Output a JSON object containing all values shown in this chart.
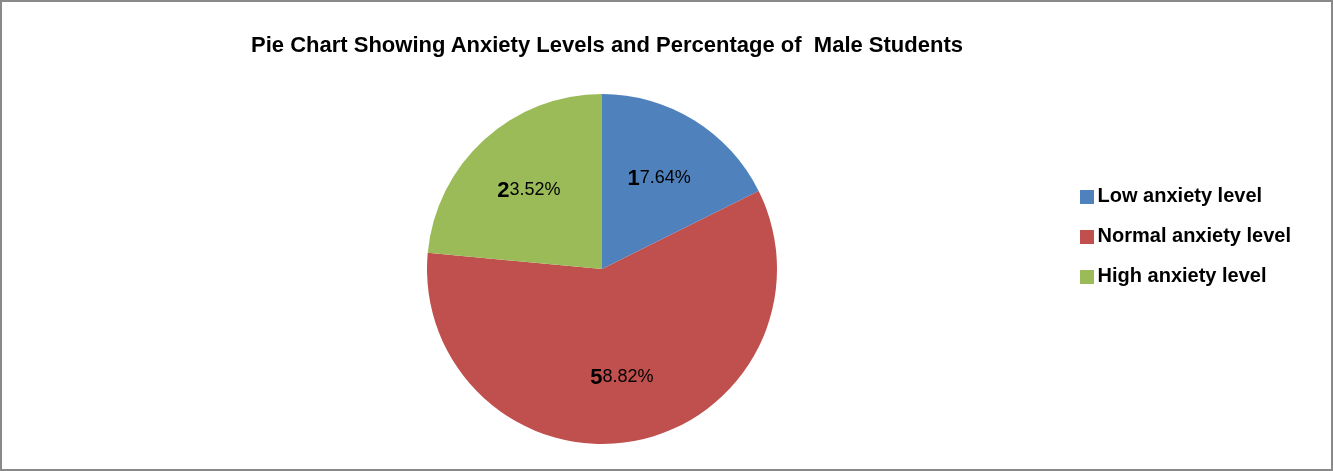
{
  "chart_data": {
    "type": "pie",
    "title": "Pie Chart Showing Anxiety Levels and Percentage of  Male Students",
    "categories": [
      "Low anxiety level",
      "Normal anxiety level",
      "High anxiety level"
    ],
    "values": [
      17.64,
      58.82,
      23.52
    ],
    "colors": [
      "#4f81bd",
      "#c0504d",
      "#9bbb59"
    ],
    "value_labels": [
      "17.64%",
      "58.82%",
      "23.52%"
    ],
    "legend": "right"
  }
}
